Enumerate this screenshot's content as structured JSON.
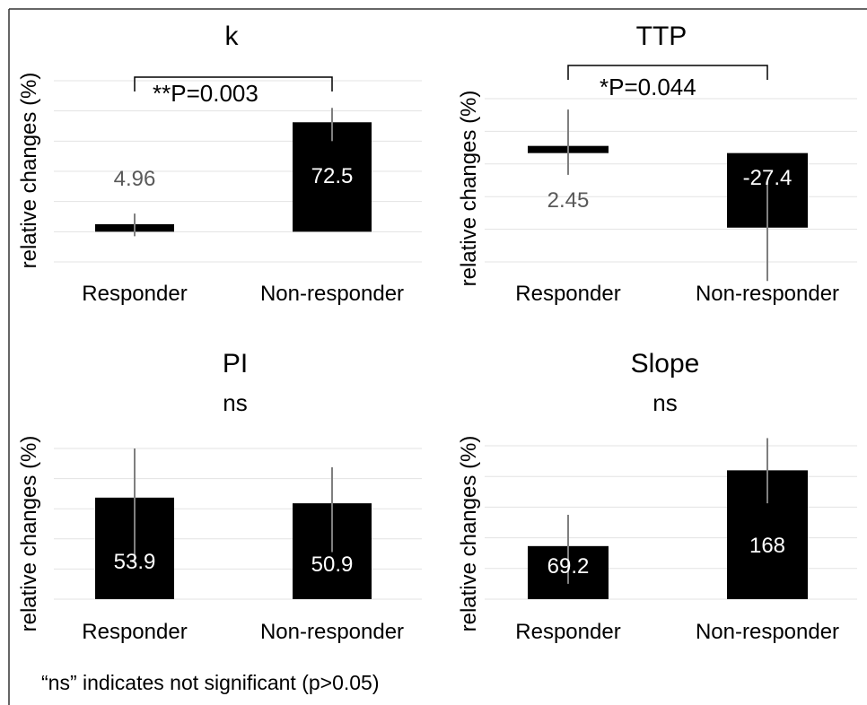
{
  "chart_data": [
    {
      "type": "bar",
      "title": "k",
      "ylabel": "relative changes (%)",
      "categories": [
        "Responder",
        "Non-responder"
      ],
      "values": [
        4.96,
        72.5
      ],
      "data_labels": [
        "4.96",
        "72.5"
      ],
      "error": [
        [
          -3,
          12
        ],
        [
          60,
          82
        ]
      ],
      "significance": "**P=0.003",
      "ylim": [
        -20,
        100
      ],
      "grid": true
    },
    {
      "type": "bar",
      "title": "TTP",
      "ylabel": "relative changes (%)",
      "categories": [
        "Responder",
        "Non-responder"
      ],
      "values": [
        2.45,
        -27.4
      ],
      "data_labels": [
        "2.45",
        "-27.4"
      ],
      "error": [
        [
          -8,
          16
        ],
        [
          -47,
          -10
        ]
      ],
      "significance": "*P=0.044",
      "ylim": [
        -40,
        20
      ],
      "grid": true
    },
    {
      "type": "bar",
      "title": "PI",
      "ylabel": "relative changes (%)",
      "categories": [
        "Responder",
        "Non-responder"
      ],
      "values": [
        53.9,
        50.9
      ],
      "data_labels": [
        "53.9",
        "50.9"
      ],
      "error": [
        [
          20,
          80
        ],
        [
          25,
          70
        ]
      ],
      "significance": "ns",
      "ylim": [
        0,
        80
      ],
      "grid": true
    },
    {
      "type": "bar",
      "title": "Slope",
      "ylabel": "relative changes (%)",
      "categories": [
        "Responder",
        "Non-responder"
      ],
      "values": [
        69.2,
        168
      ],
      "data_labels": [
        "69.2",
        "168"
      ],
      "error": [
        [
          20,
          110
        ],
        [
          125,
          210
        ]
      ],
      "significance": "ns",
      "ylim": [
        0,
        200
      ],
      "grid": true
    }
  ],
  "footnote": "“ns” indicates not significant (p>0.05)"
}
